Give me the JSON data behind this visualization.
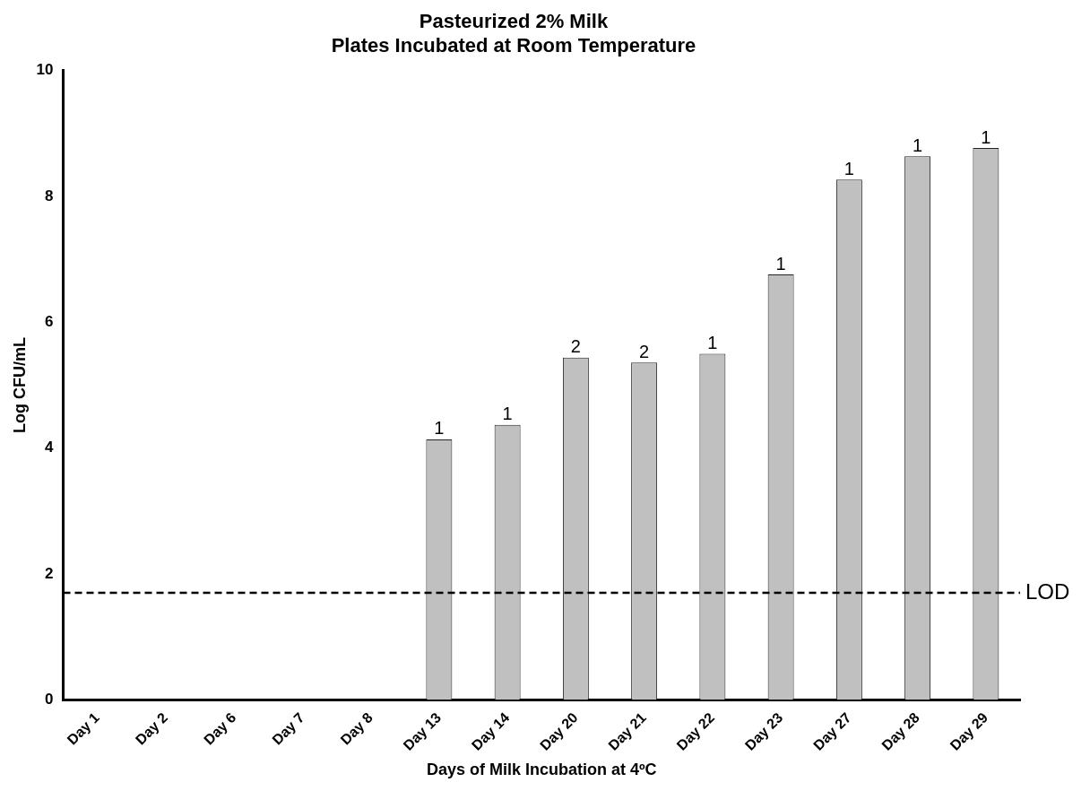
{
  "chart_data": {
    "type": "bar",
    "title": [
      "Pasteurized 2% Milk",
      "Plates Incubated at Room Temperature"
    ],
    "xlabel": "Days of Milk Incubation at 4ºC",
    "ylabel": "Log CFU/mL",
    "categories": [
      "Day 1",
      "Day 2",
      "Day 6",
      "Day 7",
      "Day 8",
      "Day 13",
      "Day 14",
      "Day 20",
      "Day 21",
      "Day 22",
      "Day 23",
      "Day 27",
      "Day 28",
      "Day 29"
    ],
    "values": [
      null,
      null,
      null,
      null,
      null,
      4.14,
      4.37,
      5.44,
      5.36,
      5.5,
      6.76,
      8.27,
      8.64,
      8.77
    ],
    "annotations": [
      {
        "text": "1",
        "x": "Day 13",
        "y": 4.14
      },
      {
        "text": "1",
        "x": "Day 14",
        "y": 4.37
      },
      {
        "text": "2",
        "x": "Day 20",
        "y": 5.44
      },
      {
        "text": "2",
        "x": "Day 21",
        "y": 5.36
      },
      {
        "text": "1",
        "x": "Day 22",
        "y": 5.5
      },
      {
        "text": "1",
        "x": "Day 23",
        "y": 6.76
      },
      {
        "text": "1",
        "x": "Day 27",
        "y": 8.27
      },
      {
        "text": "1",
        "x": "Day 28",
        "y": 8.64
      },
      {
        "text": "1",
        "x": "Day 29",
        "y": 8.77
      }
    ],
    "color": "#c0c0c0",
    "ylim": [
      0,
      10
    ],
    "yticks": [
      0,
      2,
      4,
      6,
      8,
      10
    ],
    "grid": false,
    "legend": false,
    "ref_lines": [
      {
        "axis": "y",
        "value": 1.7,
        "label": "LOD",
        "color": "#000000",
        "line_style": "dashed"
      }
    ]
  }
}
